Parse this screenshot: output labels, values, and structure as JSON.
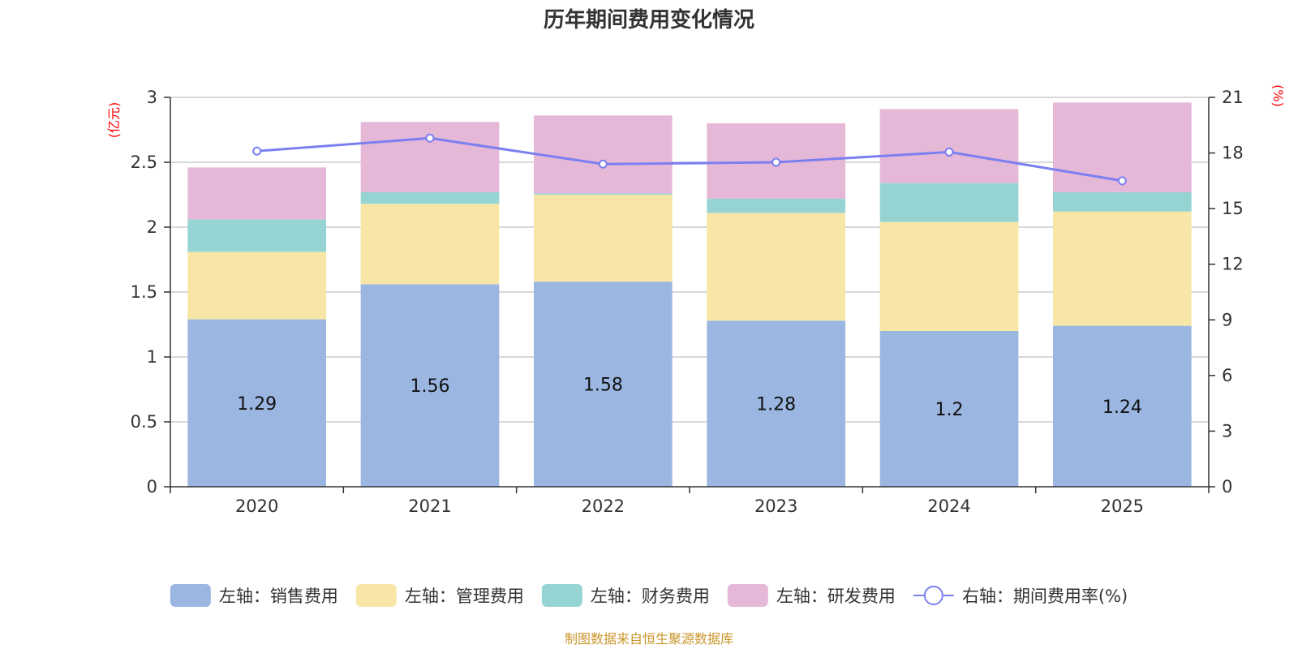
{
  "chart_data": {
    "type": "bar",
    "stacked": true,
    "title": "历年期间费用变化情况",
    "categories": [
      "2020",
      "2021",
      "2022",
      "2023",
      "2024",
      "2025"
    ],
    "left_axis": {
      "label": "(亿元)",
      "ylim": [
        0,
        3
      ],
      "ticks": [
        "0",
        "0.5",
        "1",
        "1.5",
        "2",
        "2.5",
        "3"
      ],
      "tick_values": [
        0,
        0.5,
        1,
        1.5,
        2,
        2.5,
        3
      ]
    },
    "right_axis": {
      "label": "(%)",
      "ylim": [
        0,
        21
      ],
      "ticks": [
        "0",
        "3",
        "6",
        "9",
        "12",
        "15",
        "18",
        "21"
      ],
      "tick_values": [
        0,
        3,
        6,
        9,
        12,
        15,
        18,
        21
      ]
    },
    "series": [
      {
        "name": "左轴：销售费用",
        "axis": "left",
        "type": "bar",
        "color": "#9bb7e1",
        "values": [
          1.29,
          1.56,
          1.58,
          1.28,
          1.2,
          1.24
        ],
        "labels": [
          "1.29",
          "1.56",
          "1.58",
          "1.28",
          "1.2",
          "1.24"
        ]
      },
      {
        "name": "左轴：管理费用",
        "axis": "left",
        "type": "bar",
        "color": "#f7e6a6",
        "values": [
          0.52,
          0.62,
          0.67,
          0.83,
          0.84,
          0.88
        ]
      },
      {
        "name": "左轴：财务费用",
        "axis": "left",
        "type": "bar",
        "color": "#96d4d4",
        "values": [
          0.25,
          0.09,
          0.01,
          0.11,
          0.3,
          0.15
        ]
      },
      {
        "name": "左轴：研发费用",
        "axis": "left",
        "type": "bar",
        "color": "#e6b8d8",
        "values": [
          0.4,
          0.54,
          0.6,
          0.58,
          0.57,
          0.69
        ]
      },
      {
        "name": "右轴：期间费用率(%)",
        "axis": "right",
        "type": "line",
        "color": "#7b7ff0",
        "values": [
          18.1,
          18.8,
          17.4,
          17.5,
          18.05,
          16.5
        ]
      }
    ],
    "source": "制图数据来自恒生聚源数据库"
  }
}
